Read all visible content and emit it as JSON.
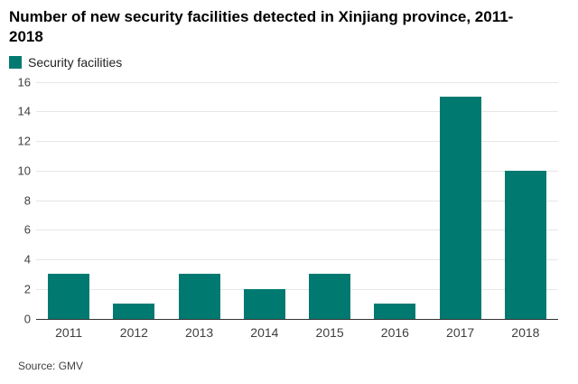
{
  "title": "Number of new security facilities detected in Xinjiang province, 2011-2018",
  "legend": {
    "label": "Security facilities",
    "color": "#007a70"
  },
  "source": "Source: GMV",
  "chart_data": {
    "type": "bar",
    "categories": [
      "2011",
      "2012",
      "2013",
      "2014",
      "2015",
      "2016",
      "2017",
      "2018"
    ],
    "values": [
      3,
      1,
      3,
      2,
      3,
      1,
      15,
      10
    ],
    "series_name": "Security facilities",
    "title": "Number of new security facilities detected in Xinjiang province, 2011-2018",
    "xlabel": "",
    "ylabel": "",
    "ylim": [
      0,
      16
    ],
    "ytick_step": 2,
    "grid": true,
    "legend_position": "top-left",
    "bar_color": "#007a70",
    "gridline_color": "#e6e6e6",
    "baseline_color": "#333333"
  }
}
